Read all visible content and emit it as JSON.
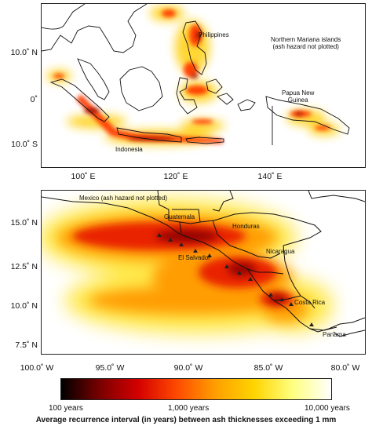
{
  "top_map": {
    "y_labels": [
      "10.0˚ N",
      "0˚",
      "10.0˚ S"
    ],
    "x_labels": [
      "100˚ E",
      "120˚ E",
      "140˚ E"
    ],
    "places": {
      "philippines": "Philippines",
      "mariana": "Northern Mariana islands\n(ash hazard not plotted)",
      "png": "Papua New\nGuinea",
      "indonesia": "Indonesia"
    }
  },
  "bottom_map": {
    "y_labels": [
      "15.0˚ N",
      "12.5˚ N",
      "10.0˚ N",
      "7.5˚ N"
    ],
    "x_labels": [
      "100.0˚ W",
      "95.0˚ W",
      "90.0˚ W",
      "85.0˚ W",
      "80.0˚ W"
    ],
    "places": {
      "mexico": "Mexico (ash hazard not plotted)",
      "guatemala": "Guatemala",
      "honduras": "Honduras",
      "nicaragua": "Nicaragua",
      "el_salvador": "El Salvador",
      "costa_rica": "Costa Rica",
      "panama": "Panama"
    }
  },
  "colorbar": {
    "ticks": [
      "100 years",
      "1,000 years",
      "10,000 years"
    ],
    "caption": "Average recurrence interval (in years) between ash thicknesses exceeding 1 mm",
    "colors": [
      "#000000",
      "#7a0000",
      "#d40000",
      "#ff4a00",
      "#ff9f00",
      "#ffd400",
      "#ffff80",
      "#ffffff"
    ]
  }
}
